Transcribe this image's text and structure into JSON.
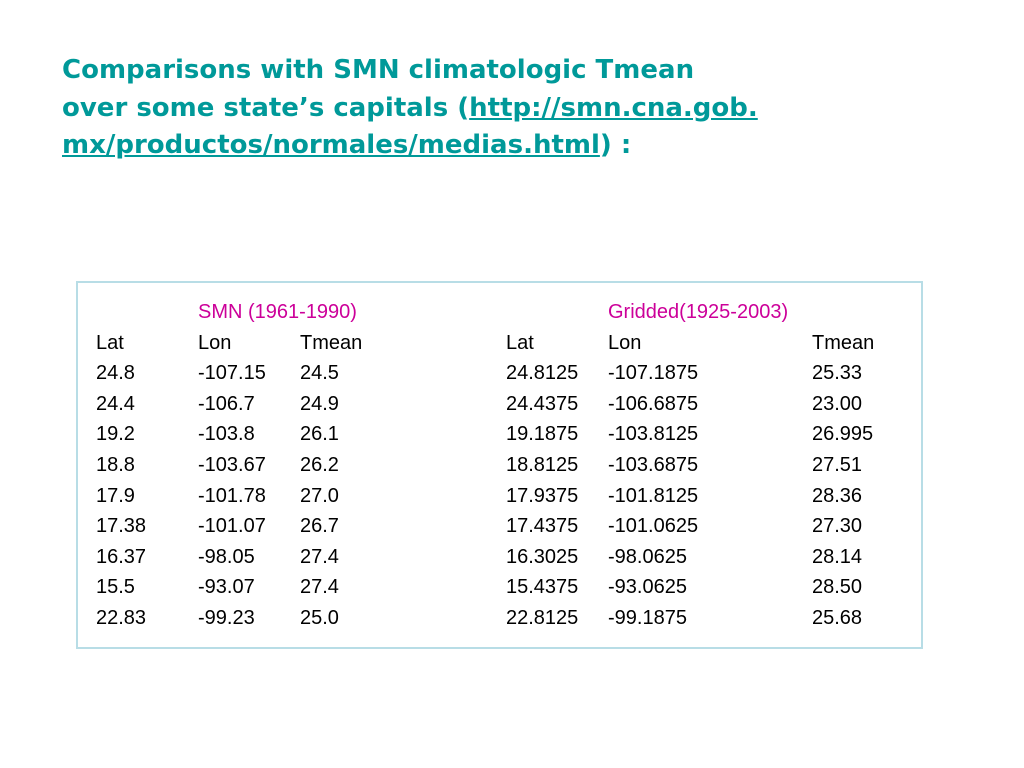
{
  "header": {
    "title_start": "Comparisons with SMN climatologic Tmean over some state’s capitals (",
    "link": "http://smn.cna.gob.mx/productos/normales/medias.html",
    "title_end": ") :"
  },
  "table": {
    "groups": [
      "SMN (1961-1990)",
      "Gridded(1925-2003)"
    ],
    "columns": [
      "Lat",
      "Lon",
      "Tmean",
      "Lat",
      "Lon",
      "Tmean"
    ],
    "rows": [
      [
        "24.8",
        "-107.15",
        "24.5",
        "24.8125",
        "-107.1875",
        "25.33"
      ],
      [
        "24.4",
        "-106.7",
        "24.9",
        "24.4375",
        "-106.6875",
        "23.00"
      ],
      [
        "19.2",
        "-103.8",
        "26.1",
        "19.1875",
        "-103.8125",
        "26.995"
      ],
      [
        "18.8",
        "-103.67",
        "26.2",
        "18.8125",
        "-103.6875",
        "27.51"
      ],
      [
        "17.9",
        "-101.78",
        "27.0",
        "17.9375",
        "-101.8125",
        "28.36"
      ],
      [
        "17.38",
        "-101.07",
        "26.7",
        "17.4375",
        "-101.0625",
        "27.30"
      ],
      [
        "16.37",
        "-98.05",
        "27.4",
        "16.3025",
        "-98.0625",
        "28.14"
      ],
      [
        "15.5",
        "-93.07",
        "27.4",
        "15.4375",
        "-93.0625",
        "28.50"
      ],
      [
        "22.83",
        "-99.23",
        "25.0",
        "22.8125",
        "-99.1875",
        "25.68"
      ]
    ]
  }
}
